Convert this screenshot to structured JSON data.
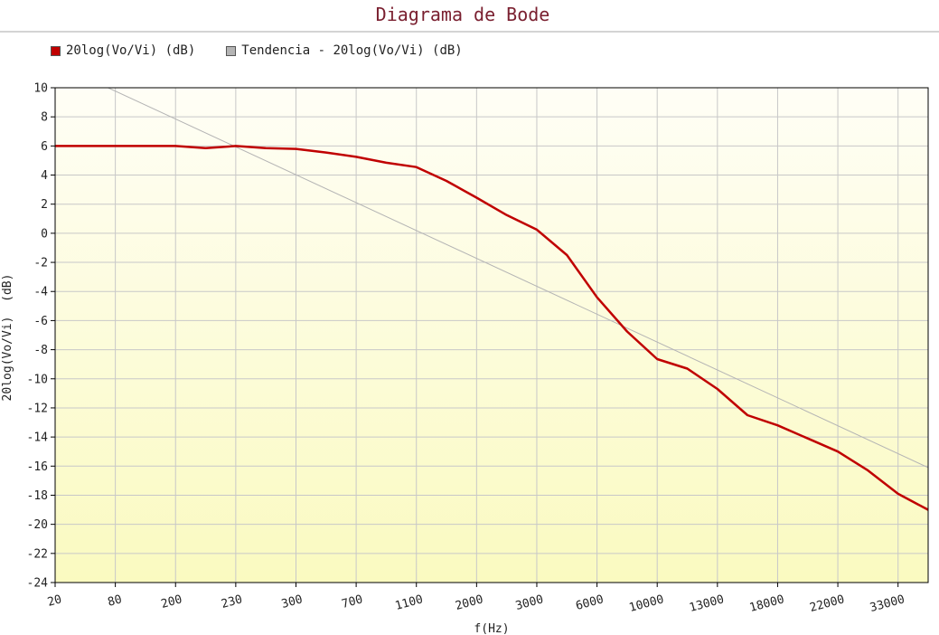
{
  "chart_data": {
    "type": "line",
    "title": "Diagrama de Bode",
    "xlabel": "f(Hz)",
    "ylabel": "20log(Vo/Vi)  (dB)",
    "categories": [
      "20",
      "80",
      "200",
      "230",
      "300",
      "700",
      "1100",
      "2000",
      "3000",
      "6000",
      "10000",
      "13000",
      "18000",
      "22000",
      "33000"
    ],
    "ylim": [
      -24,
      10
    ],
    "ytick_step": 2,
    "grid": true,
    "legend_position": "top-left",
    "series": [
      {
        "name": "20log(Vo/Vi)  (dB)",
        "color": "#c00000",
        "points": [
          [
            0,
            6.0
          ],
          [
            1,
            6.0
          ],
          [
            2,
            6.0
          ],
          [
            2.5,
            5.85
          ],
          [
            3,
            6.0
          ],
          [
            3.5,
            5.85
          ],
          [
            4,
            5.8
          ],
          [
            4.5,
            5.55
          ],
          [
            5,
            5.25
          ],
          [
            5.5,
            4.85
          ],
          [
            6,
            4.55
          ],
          [
            6.5,
            3.6
          ],
          [
            7,
            2.45
          ],
          [
            7.5,
            1.25
          ],
          [
            8,
            0.25
          ],
          [
            8.5,
            -1.5
          ],
          [
            9,
            -4.4
          ],
          [
            9.5,
            -6.75
          ],
          [
            10,
            -8.65
          ],
          [
            10.5,
            -9.3
          ],
          [
            11,
            -10.7
          ],
          [
            11.5,
            -12.5
          ],
          [
            12,
            -13.2
          ],
          [
            12.5,
            -14.1
          ],
          [
            13,
            -15.0
          ],
          [
            13.5,
            -16.3
          ],
          [
            14,
            -17.9
          ],
          [
            14.5,
            -19.0
          ]
        ]
      },
      {
        "name": "Tendencia - 20log(Vo/Vi)  (dB)",
        "color": "#b4b4b4",
        "points": [
          [
            0.88,
            10.0
          ],
          [
            14.5,
            -16.1
          ]
        ]
      }
    ]
  }
}
